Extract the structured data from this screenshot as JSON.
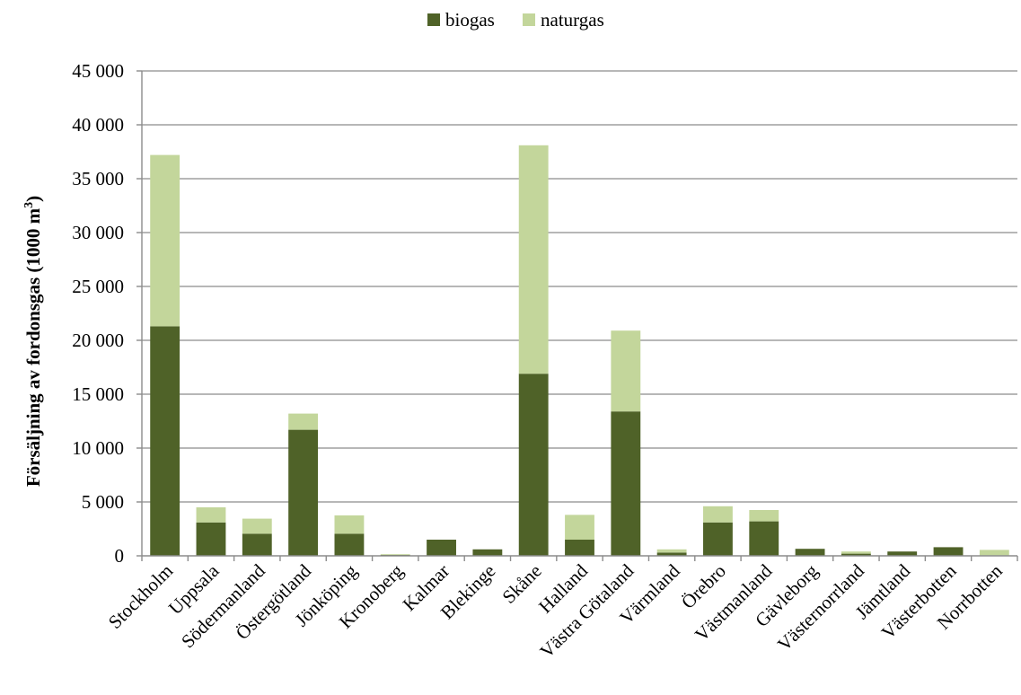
{
  "chart_data": {
    "type": "bar",
    "stacked": true,
    "title": "",
    "xlabel": "",
    "ylabel": "Försäljning av fordonsgas (1000 m",
    "ylabel_sup": "3",
    "ylabel_end": ")",
    "ylim": [
      0,
      45000
    ],
    "yticks": [
      0,
      5000,
      10000,
      15000,
      20000,
      25000,
      30000,
      35000,
      40000,
      45000
    ],
    "ytick_labels": [
      "0",
      "5 000",
      "10 000",
      "15 000",
      "20 000",
      "25 000",
      "30 000",
      "35 000",
      "40 000",
      "45 000"
    ],
    "grid": true,
    "legend_position": "top-center",
    "categories": [
      "Stockholm",
      "Uppsala",
      "Södermanland",
      "Östergötland",
      "Jönköping",
      "Kronoberg",
      "Kalmar",
      "Blekinge",
      "Skåne",
      "Halland",
      "Västra Götaland",
      "Värmland",
      "Örebro",
      "Västmanland",
      "Gävleborg",
      "Västernorrland",
      "Jämtland",
      "Västerbotten",
      "Norrbotten"
    ],
    "series": [
      {
        "name": "biogas",
        "color": "#4f6228",
        "values": [
          21300,
          3100,
          2050,
          11700,
          2050,
          80,
          1500,
          600,
          16900,
          1500,
          13400,
          300,
          3100,
          3200,
          650,
          200,
          400,
          800,
          50
        ]
      },
      {
        "name": "naturgas",
        "color": "#c3d69b",
        "values": [
          15900,
          1400,
          1400,
          1500,
          1700,
          70,
          0,
          0,
          21200,
          2300,
          7500,
          300,
          1500,
          1050,
          0,
          200,
          0,
          0,
          500
        ]
      }
    ]
  }
}
